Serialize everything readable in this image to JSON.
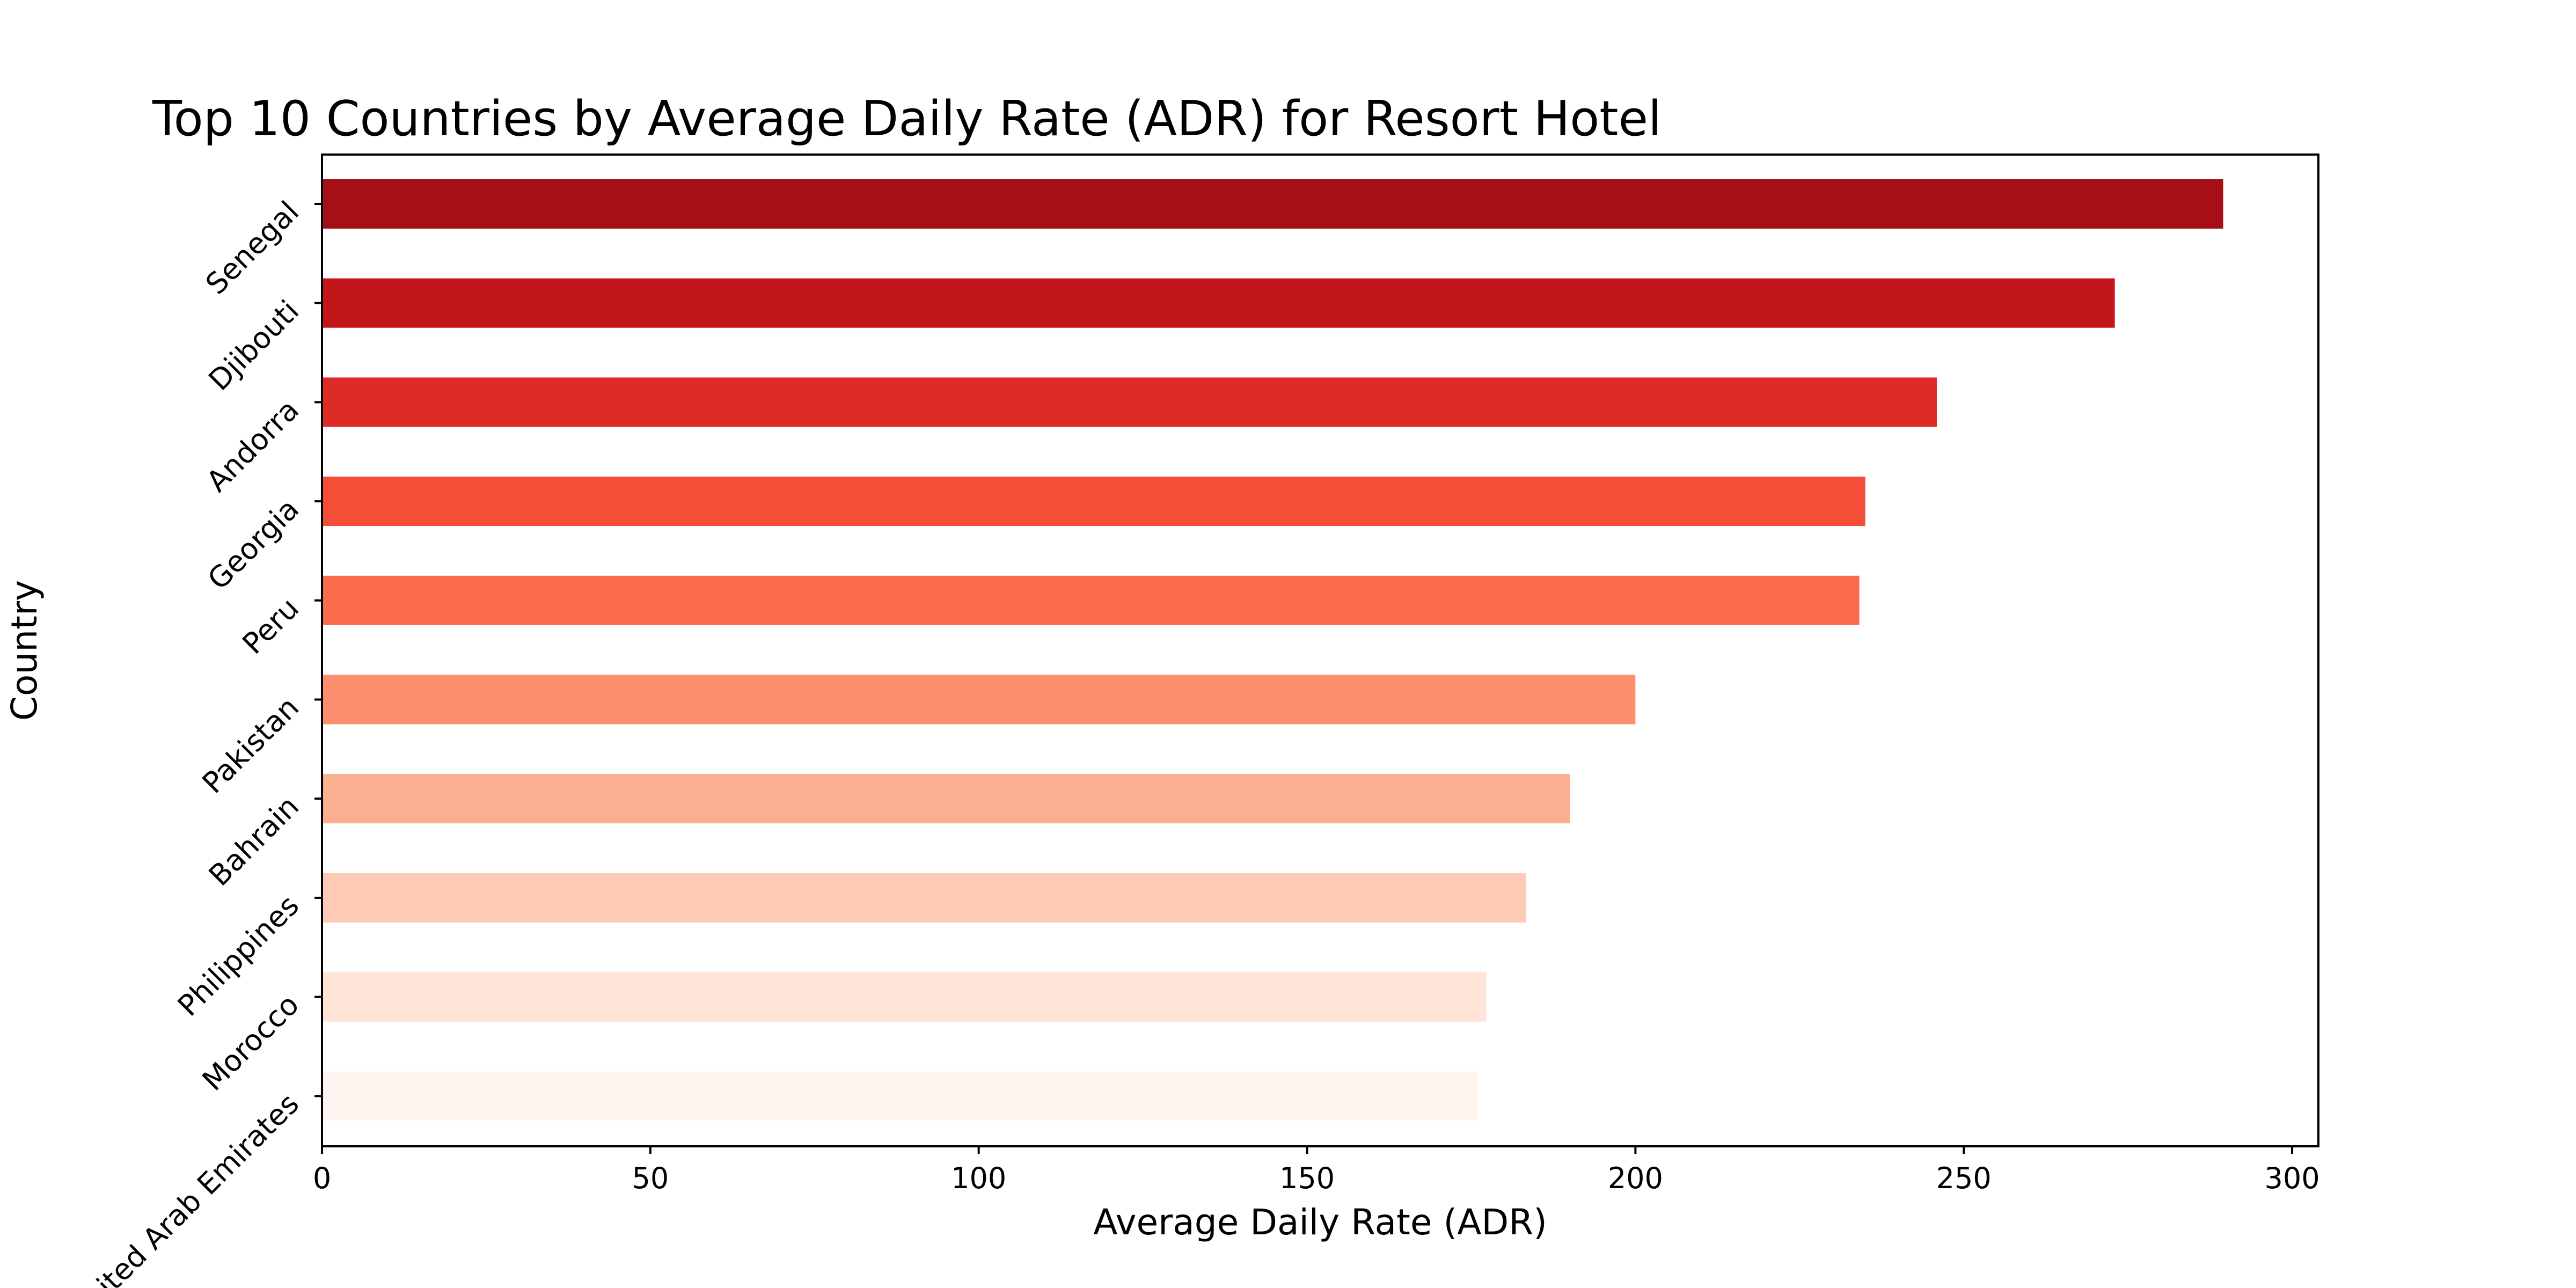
{
  "chart_data": {
    "type": "bar",
    "orientation": "horizontal",
    "title": "Top 10 Countries by Average Daily Rate (ADR) for Resort Hotel",
    "xlabel": "Average Daily Rate (ADR)",
    "ylabel": "Country",
    "xlim": [
      0,
      304
    ],
    "x_ticks": [
      0,
      50,
      100,
      150,
      200,
      250,
      300
    ],
    "grid": false,
    "legend": "none",
    "categories": [
      "Senegal",
      "Djibouti",
      "Andorra",
      "Georgia",
      "Peru",
      "Pakistan",
      "Bahrain",
      "Philippines",
      "Morocco",
      "United Arab Emirates"
    ],
    "values": [
      289.5,
      273.0,
      245.9,
      235.0,
      234.1,
      200.0,
      190.0,
      183.3,
      177.3,
      176.0
    ],
    "colors": [
      "#a50f15",
      "#c3161b",
      "#de2b25",
      "#f44d38",
      "#fc6c4c",
      "#fc8d6d",
      "#fcae91",
      "#fdcab5",
      "#fee3d6",
      "#fff5f0"
    ]
  }
}
